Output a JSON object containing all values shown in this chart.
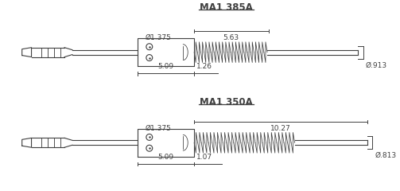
{
  "bg_color": "#ffffff",
  "line_color": "#404040",
  "title1": "MA1 385A",
  "title2": "MA1 350A",
  "top": {
    "dim_509": "5.09",
    "dim_126": "1.26",
    "dim_563": "5.63",
    "dim_913": "Ø.913",
    "dim_1375": "Ø1.375"
  },
  "bot": {
    "dim_509": "5.09",
    "dim_107": "1.07",
    "dim_1027": "10.27",
    "dim_813": "Ø.813",
    "dim_1375": "Ø1.375"
  }
}
